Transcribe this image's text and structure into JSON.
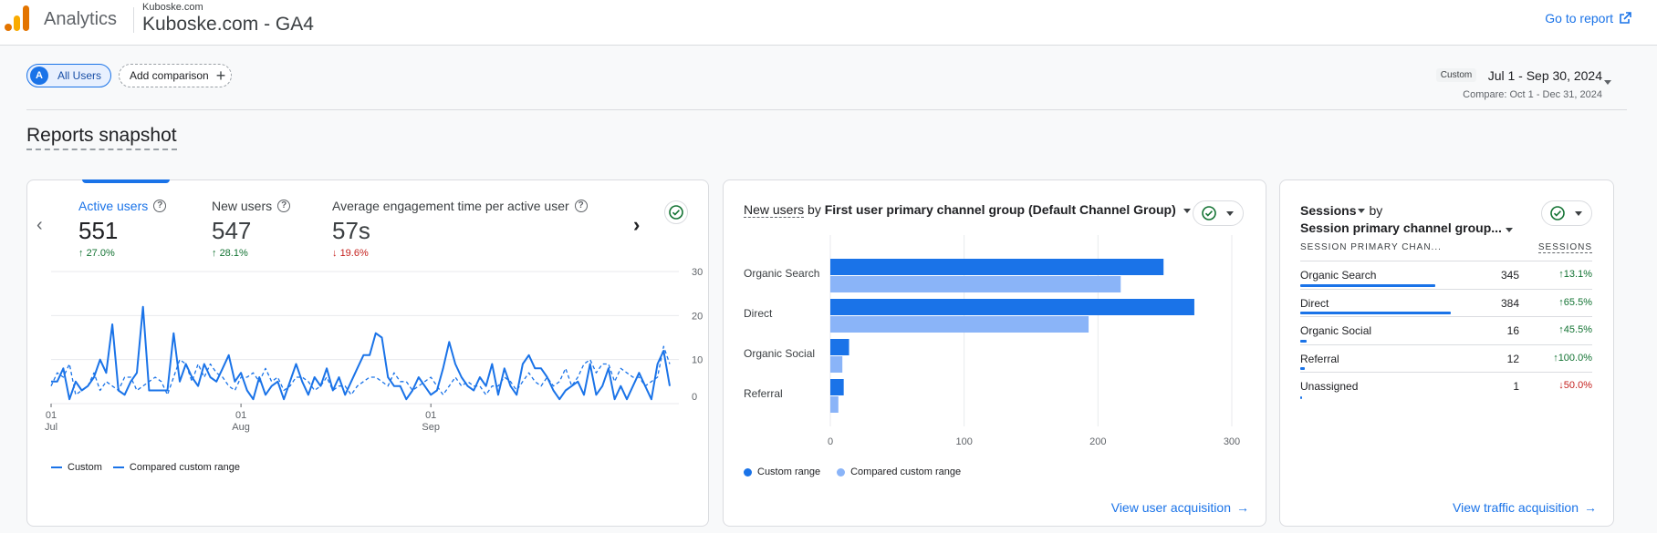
{
  "header": {
    "app_name": "Analytics",
    "account": "Kuboske.com",
    "property": "Kuboske.com - GA4",
    "go_to_report": "Go to report"
  },
  "filters": {
    "segment_avatar": "A",
    "segment_label": "All Users",
    "add_comparison": "Add comparison"
  },
  "date": {
    "tag": "Custom",
    "range": "Jul 1 - Sep 30, 2024",
    "compare": "Compare: Oct 1 - Dec 31, 2024"
  },
  "snapshot_title": "Reports snapshot",
  "overview": {
    "metrics": [
      {
        "label": "Active users",
        "value": "551",
        "change": "27.0%",
        "direction": "up"
      },
      {
        "label": "New users",
        "value": "547",
        "change": "28.1%",
        "direction": "up"
      },
      {
        "label": "Average engagement time per active user",
        "value": "57s",
        "change": "19.6%",
        "direction": "down"
      }
    ],
    "legend": [
      "Custom",
      "Compared custom range"
    ]
  },
  "acquisition": {
    "title_metric": "New users",
    "title_by": "by",
    "title_dim": "First user primary channel group (Default Channel Group)",
    "legend": [
      "Custom range",
      "Compared custom range"
    ],
    "view_link": "View user acquisition"
  },
  "sessions": {
    "title_metric": "Sessions",
    "title_by": "by",
    "title_dim": "Session primary channel group...",
    "col_dim": "SESSION PRIMARY CHAN...",
    "col_metric": "SESSIONS",
    "rows": [
      {
        "name": "Organic Search",
        "value": "345",
        "change": "13.1%",
        "direction": "up",
        "share": 0.898
      },
      {
        "name": "Direct",
        "value": "384",
        "change": "65.5%",
        "direction": "up",
        "share": 1.0
      },
      {
        "name": "Organic Social",
        "value": "16",
        "change": "45.5%",
        "direction": "up",
        "share": 0.042
      },
      {
        "name": "Referral",
        "value": "12",
        "change": "100.0%",
        "direction": "up",
        "share": 0.031
      },
      {
        "name": "Unassigned",
        "value": "1",
        "change": "50.0%",
        "direction": "down",
        "share": 0.003
      }
    ],
    "view_link": "View traffic acquisition"
  },
  "colors": {
    "primary": "#1a73e8",
    "secondary": "#8ab4f8",
    "up": "#137333",
    "down": "#c5221f"
  },
  "chart_data": [
    {
      "type": "line",
      "y_ticks": [
        "30",
        "20",
        "10",
        "0"
      ],
      "ylim": [
        0,
        30
      ],
      "x_ticks": [
        {
          "day": "01",
          "month": "Jul",
          "index": 0
        },
        {
          "day": "01",
          "month": "Aug",
          "index": 31
        },
        {
          "day": "01",
          "month": "Sep",
          "index": 62
        }
      ],
      "series": [
        {
          "name": "Custom",
          "style": "solid",
          "values": [
            5,
            5,
            8,
            1,
            5,
            3,
            4,
            6,
            10,
            7,
            18,
            3,
            2,
            5,
            7,
            22,
            3,
            3,
            3,
            3,
            16,
            5,
            9,
            6,
            4,
            9,
            6,
            5,
            8,
            11,
            5,
            7,
            3,
            1,
            6,
            2,
            4,
            5,
            1,
            5,
            9,
            5,
            2,
            6,
            4,
            8,
            3,
            6,
            2,
            5,
            8,
            11,
            11,
            16,
            15,
            6,
            4,
            4,
            1,
            3,
            6,
            4,
            2,
            3,
            8,
            14,
            9,
            6,
            4,
            3,
            6,
            4,
            9,
            2,
            8,
            4,
            2,
            9,
            11,
            8,
            8,
            6,
            3,
            1,
            3,
            4,
            5,
            2,
            9,
            2,
            4,
            8,
            1,
            4,
            1,
            4,
            7,
            4,
            1,
            9,
            12,
            4
          ]
        },
        {
          "name": "Compared custom range",
          "style": "dashed",
          "values": [
            4,
            7,
            6,
            9,
            2,
            3,
            4,
            7,
            3,
            5,
            4,
            3,
            6,
            6,
            3,
            4,
            5,
            6,
            5,
            2,
            6,
            10,
            9,
            5,
            9,
            6,
            9,
            7,
            6,
            4,
            3,
            6,
            6,
            7,
            5,
            8,
            5,
            6,
            3,
            4,
            6,
            6,
            5,
            3,
            4,
            6,
            3,
            4,
            4,
            2,
            4,
            5,
            6,
            6,
            5,
            4,
            7,
            5,
            5,
            3,
            4,
            5,
            6,
            4,
            2,
            4,
            6,
            4,
            5,
            4,
            4,
            2,
            4,
            4,
            6,
            5,
            3,
            5,
            7,
            5,
            4,
            6,
            4,
            5,
            8,
            4,
            6,
            9,
            10,
            7,
            9,
            9,
            5,
            8,
            7,
            6,
            6,
            4,
            5,
            6,
            13,
            9
          ]
        }
      ]
    },
    {
      "type": "bar",
      "orientation": "horizontal",
      "categories": [
        "Organic Search",
        "Direct",
        "Organic Social",
        "Referral"
      ],
      "series": [
        {
          "name": "Custom range",
          "values": [
            249,
            272,
            14,
            10
          ]
        },
        {
          "name": "Compared custom range",
          "values": [
            217,
            193,
            9,
            6
          ]
        }
      ],
      "x_ticks": [
        0,
        100,
        200,
        300
      ],
      "xlim": [
        0,
        300
      ]
    }
  ]
}
